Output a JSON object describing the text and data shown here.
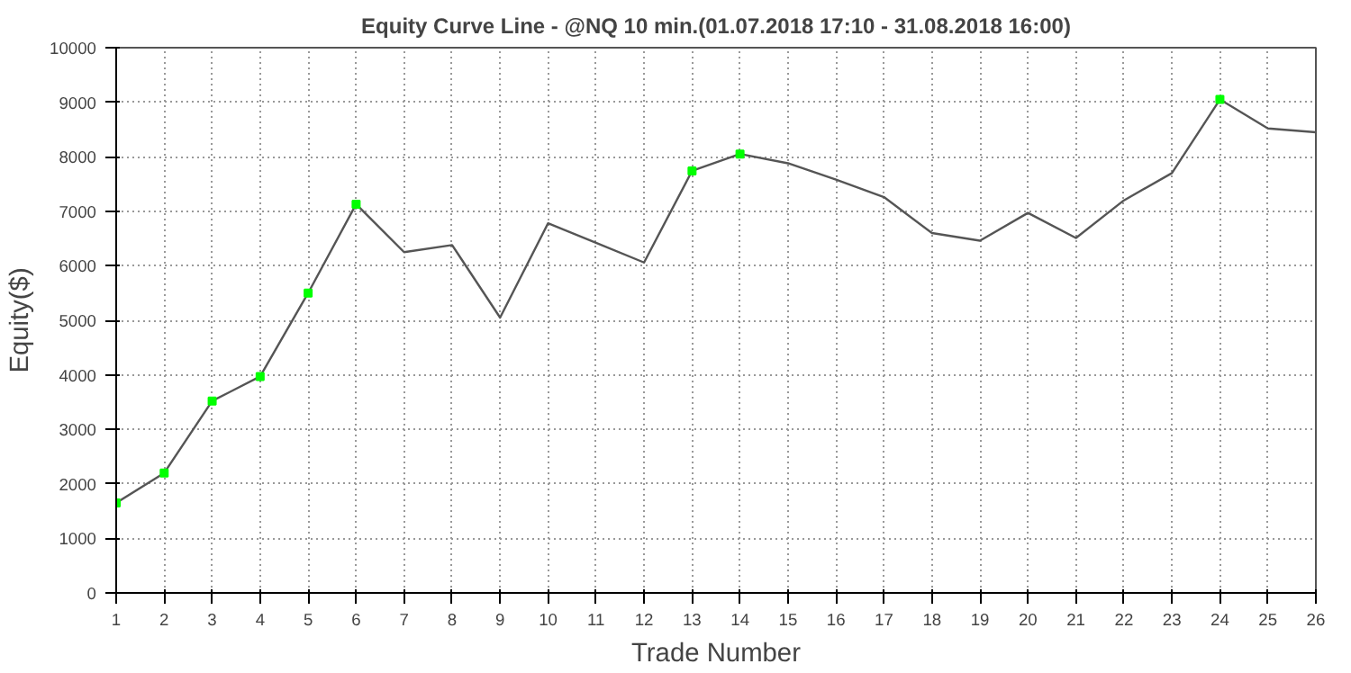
{
  "chart_data": {
    "type": "line",
    "title": "Equity Curve Line - @NQ 10 min.(01.07.2018 17:10 - 31.08.2018 16:00)",
    "xlabel": "Trade Number",
    "ylabel": "Equity($)",
    "x": [
      1,
      2,
      3,
      4,
      5,
      6,
      7,
      8,
      9,
      10,
      11,
      12,
      13,
      14,
      15,
      16,
      17,
      18,
      19,
      20,
      21,
      22,
      23,
      24,
      25,
      26
    ],
    "series": [
      {
        "color": "#555555",
        "marker": "none",
        "values": [
          1650,
          2200,
          3520,
          3970,
          5500,
          7130,
          6250,
          6380,
          5050,
          6780,
          6420,
          6060,
          7740,
          8050,
          7880,
          7580,
          7260,
          6600,
          6460,
          6970,
          6510,
          7200,
          7700,
          9050,
          8520,
          8450
        ]
      },
      {
        "type": "scatter",
        "color": "#00ff00",
        "marker": "square",
        "x": [
          1,
          2,
          3,
          4,
          5,
          6,
          13,
          14,
          24
        ],
        "values": [
          1650,
          2200,
          3520,
          3970,
          5500,
          7130,
          7740,
          8050,
          9050
        ]
      }
    ],
    "xlim": [
      1,
      26
    ],
    "xticks": [
      1,
      2,
      3,
      4,
      5,
      6,
      7,
      8,
      9,
      10,
      11,
      12,
      13,
      14,
      15,
      16,
      17,
      18,
      19,
      20,
      21,
      22,
      23,
      24,
      25,
      26
    ],
    "ylim": [
      0,
      10000
    ],
    "yticks": [
      0,
      1000,
      2000,
      3000,
      4000,
      5000,
      6000,
      7000,
      8000,
      9000,
      10000
    ],
    "grid": true,
    "line_style": "solid"
  }
}
